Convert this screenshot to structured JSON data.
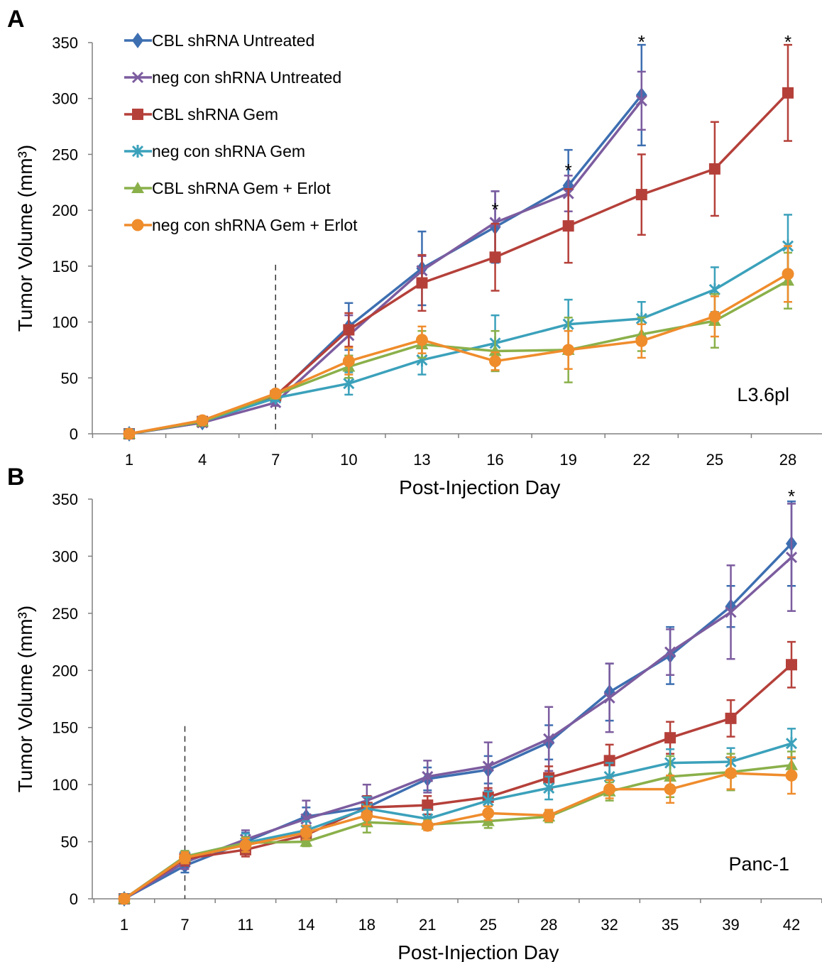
{
  "colors": {
    "CBL shRNA Untreated": "#3d6fb1",
    "neg con shRNA Untreated": "#7c5c9f",
    "CBL shRNA Gem": "#b5403a",
    "neg con shRNA Gem": "#3ba1bb",
    "CBL shRNA Gem + Erlot": "#8ab04a",
    "neg con shRNA Gem + Erlot": "#ef8c2c"
  },
  "legend": [
    {
      "label": "CBL shRNA Untreated",
      "marker": "diamond"
    },
    {
      "label": "neg con shRNA Untreated",
      "marker": "x"
    },
    {
      "label": "CBL shRNA Gem",
      "marker": "square"
    },
    {
      "label": "neg con shRNA Gem",
      "marker": "star"
    },
    {
      "label": "CBL shRNA Gem + Erlot",
      "marker": "triangle"
    },
    {
      "label": "neg con shRNA Gem + Erlot",
      "marker": "circle"
    }
  ],
  "chart_data": [
    {
      "panel": "A",
      "type": "line",
      "annotation": "L3.6pl",
      "xlabel": "Post-Injection Day",
      "ylabel": "Tumor Volume (mm³)",
      "ylim": [
        0,
        350
      ],
      "yticks": [
        0,
        50,
        100,
        150,
        200,
        250,
        300,
        350
      ],
      "categories": [
        "1",
        "4",
        "7",
        "10",
        "13",
        "16",
        "19",
        "22",
        "25",
        "28"
      ],
      "treatment_start": "7",
      "significance_marks": [
        {
          "x": "16",
          "y": 200,
          "text": "*"
        },
        {
          "x": "19",
          "y": 235,
          "text": "*"
        },
        {
          "x": "22",
          "y": 350,
          "text": "*"
        },
        {
          "x": "28",
          "y": 350,
          "text": "*"
        }
      ],
      "series": [
        {
          "name": "CBL shRNA Untreated",
          "marker": "diamond",
          "values": [
            0,
            10,
            33,
            96,
            148,
            185,
            222,
            303,
            null,
            null
          ],
          "errors": [
            0,
            2,
            3,
            21,
            33,
            32,
            32,
            45,
            null,
            null
          ]
        },
        {
          "name": "neg con shRNA Untreated",
          "marker": "x",
          "values": [
            0,
            10,
            28,
            88,
            146,
            189,
            215,
            298,
            null,
            null
          ],
          "errors": [
            0,
            2,
            3,
            18,
            13,
            28,
            16,
            26,
            null,
            null
          ]
        },
        {
          "name": "CBL shRNA Gem",
          "marker": "square",
          "values": [
            0,
            11,
            34,
            93,
            135,
            158,
            186,
            214,
            237,
            305
          ],
          "errors": [
            0,
            2,
            3,
            15,
            25,
            30,
            33,
            36,
            42,
            43
          ]
        },
        {
          "name": "neg con shRNA Gem",
          "marker": "star",
          "values": [
            0,
            11,
            32,
            45,
            66,
            81,
            98,
            103,
            129,
            168
          ],
          "errors": [
            0,
            2,
            3,
            10,
            13,
            25,
            22,
            15,
            20,
            28
          ]
        },
        {
          "name": "CBL shRNA Gem + Erlot",
          "marker": "triangle",
          "values": [
            0,
            11,
            35,
            60,
            80,
            74,
            75,
            89,
            101,
            137
          ],
          "errors": [
            0,
            2,
            3,
            10,
            12,
            18,
            29,
            15,
            24,
            25
          ]
        },
        {
          "name": "neg con shRNA Gem + Erlot",
          "marker": "circle",
          "values": [
            0,
            12,
            36,
            65,
            84,
            65,
            75,
            83,
            105,
            143
          ],
          "errors": [
            0,
            2,
            3,
            12,
            12,
            8,
            17,
            15,
            18,
            25
          ]
        }
      ]
    },
    {
      "panel": "B",
      "type": "line",
      "annotation": "Panc-1",
      "xlabel": "Post-Injection Day",
      "ylabel": "Tumor Volume (mm³)",
      "ylim": [
        0,
        350
      ],
      "yticks": [
        0,
        50,
        100,
        150,
        200,
        250,
        300,
        350
      ],
      "categories": [
        "1",
        "7",
        "11",
        "14",
        "18",
        "21",
        "25",
        "28",
        "32",
        "35",
        "39",
        "42"
      ],
      "treatment_start": "7",
      "significance_marks": [
        {
          "x": "42",
          "y": 352,
          "text": "*"
        }
      ],
      "series": [
        {
          "name": "CBL shRNA Untreated",
          "marker": "diamond",
          "values": [
            0,
            29,
            50,
            72,
            80,
            105,
            113,
            137,
            181,
            213,
            256,
            311
          ],
          "errors": [
            0,
            6,
            8,
            8,
            10,
            10,
            12,
            15,
            25,
            25,
            18,
            37
          ]
        },
        {
          "name": "neg con shRNA Untreated",
          "marker": "x",
          "values": [
            0,
            32,
            52,
            70,
            86,
            107,
            116,
            140,
            176,
            216,
            251,
            299
          ],
          "errors": [
            0,
            6,
            8,
            16,
            14,
            14,
            21,
            28,
            30,
            20,
            41,
            47
          ]
        },
        {
          "name": "CBL shRNA Gem",
          "marker": "square",
          "values": [
            0,
            35,
            43,
            56,
            80,
            82,
            89,
            106,
            121,
            141,
            158,
            205
          ],
          "errors": [
            0,
            6,
            6,
            8,
            10,
            8,
            8,
            10,
            14,
            14,
            16,
            20
          ]
        },
        {
          "name": "neg con shRNA Gem",
          "marker": "star",
          "values": [
            0,
            37,
            49,
            60,
            79,
            70,
            86,
            97,
            107,
            119,
            120,
            136
          ],
          "errors": [
            0,
            5,
            8,
            8,
            10,
            8,
            8,
            10,
            12,
            12,
            12,
            13
          ]
        },
        {
          "name": "CBL shRNA Gem + Erlot",
          "marker": "triangle",
          "values": [
            0,
            37,
            49,
            50,
            67,
            65,
            68,
            72,
            94,
            107,
            111,
            117
          ],
          "errors": [
            0,
            5,
            5,
            4,
            9,
            4,
            6,
            5,
            8,
            18,
            16,
            12
          ]
        },
        {
          "name": "neg con shRNA Gem + Erlot",
          "marker": "circle",
          "values": [
            0,
            36,
            47,
            58,
            73,
            64,
            75,
            73,
            96,
            96,
            110,
            108
          ],
          "errors": [
            0,
            5,
            6,
            6,
            8,
            4,
            6,
            5,
            8,
            12,
            14,
            16
          ]
        }
      ]
    }
  ]
}
